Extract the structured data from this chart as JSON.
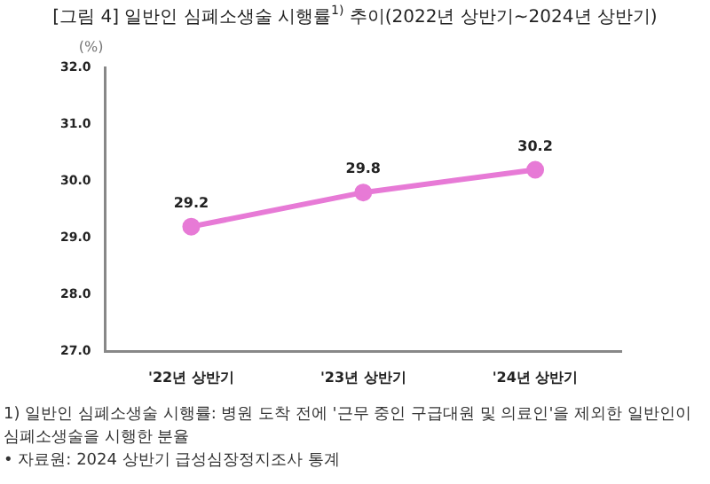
{
  "chart_data": {
    "type": "line",
    "title": "[그림 4] 일반인 심폐소생술 시행률$^{1)}$ 추이(2022년 상반기~2024년 상반기)",
    "ylabel": "(%)",
    "categories": [
      "'22년 상반기",
      "'23년 상반기",
      "'24년 상반기"
    ],
    "series": [
      {
        "color": "#e77ad6",
        "values": [
          29.2,
          29.8,
          30.2
        ]
      }
    ],
    "ylim": [
      27,
      32
    ],
    "yticks": [
      {
        "value": 27,
        "label": "27.0"
      },
      {
        "value": 28,
        "label": "28.0"
      },
      {
        "value": 29,
        "label": "29.0"
      },
      {
        "value": 30,
        "label": "30.0"
      },
      {
        "value": 31,
        "label": "31.0"
      },
      {
        "value": 32,
        "label": "32.0"
      }
    ],
    "grid": false,
    "legend": false,
    "marker": "circle",
    "line_style": "solid",
    "data_labels": true,
    "annotations": [
      "1) 일반인 심폐소생술 시행률: 병원 도착 전에 '근무 중인 구급대원 및 의료인'을 제외한 일반인이 심폐소생술을 시행한 분율",
      "• 자료원: 2024 상반기 급성심장정지조사 통계"
    ]
  }
}
